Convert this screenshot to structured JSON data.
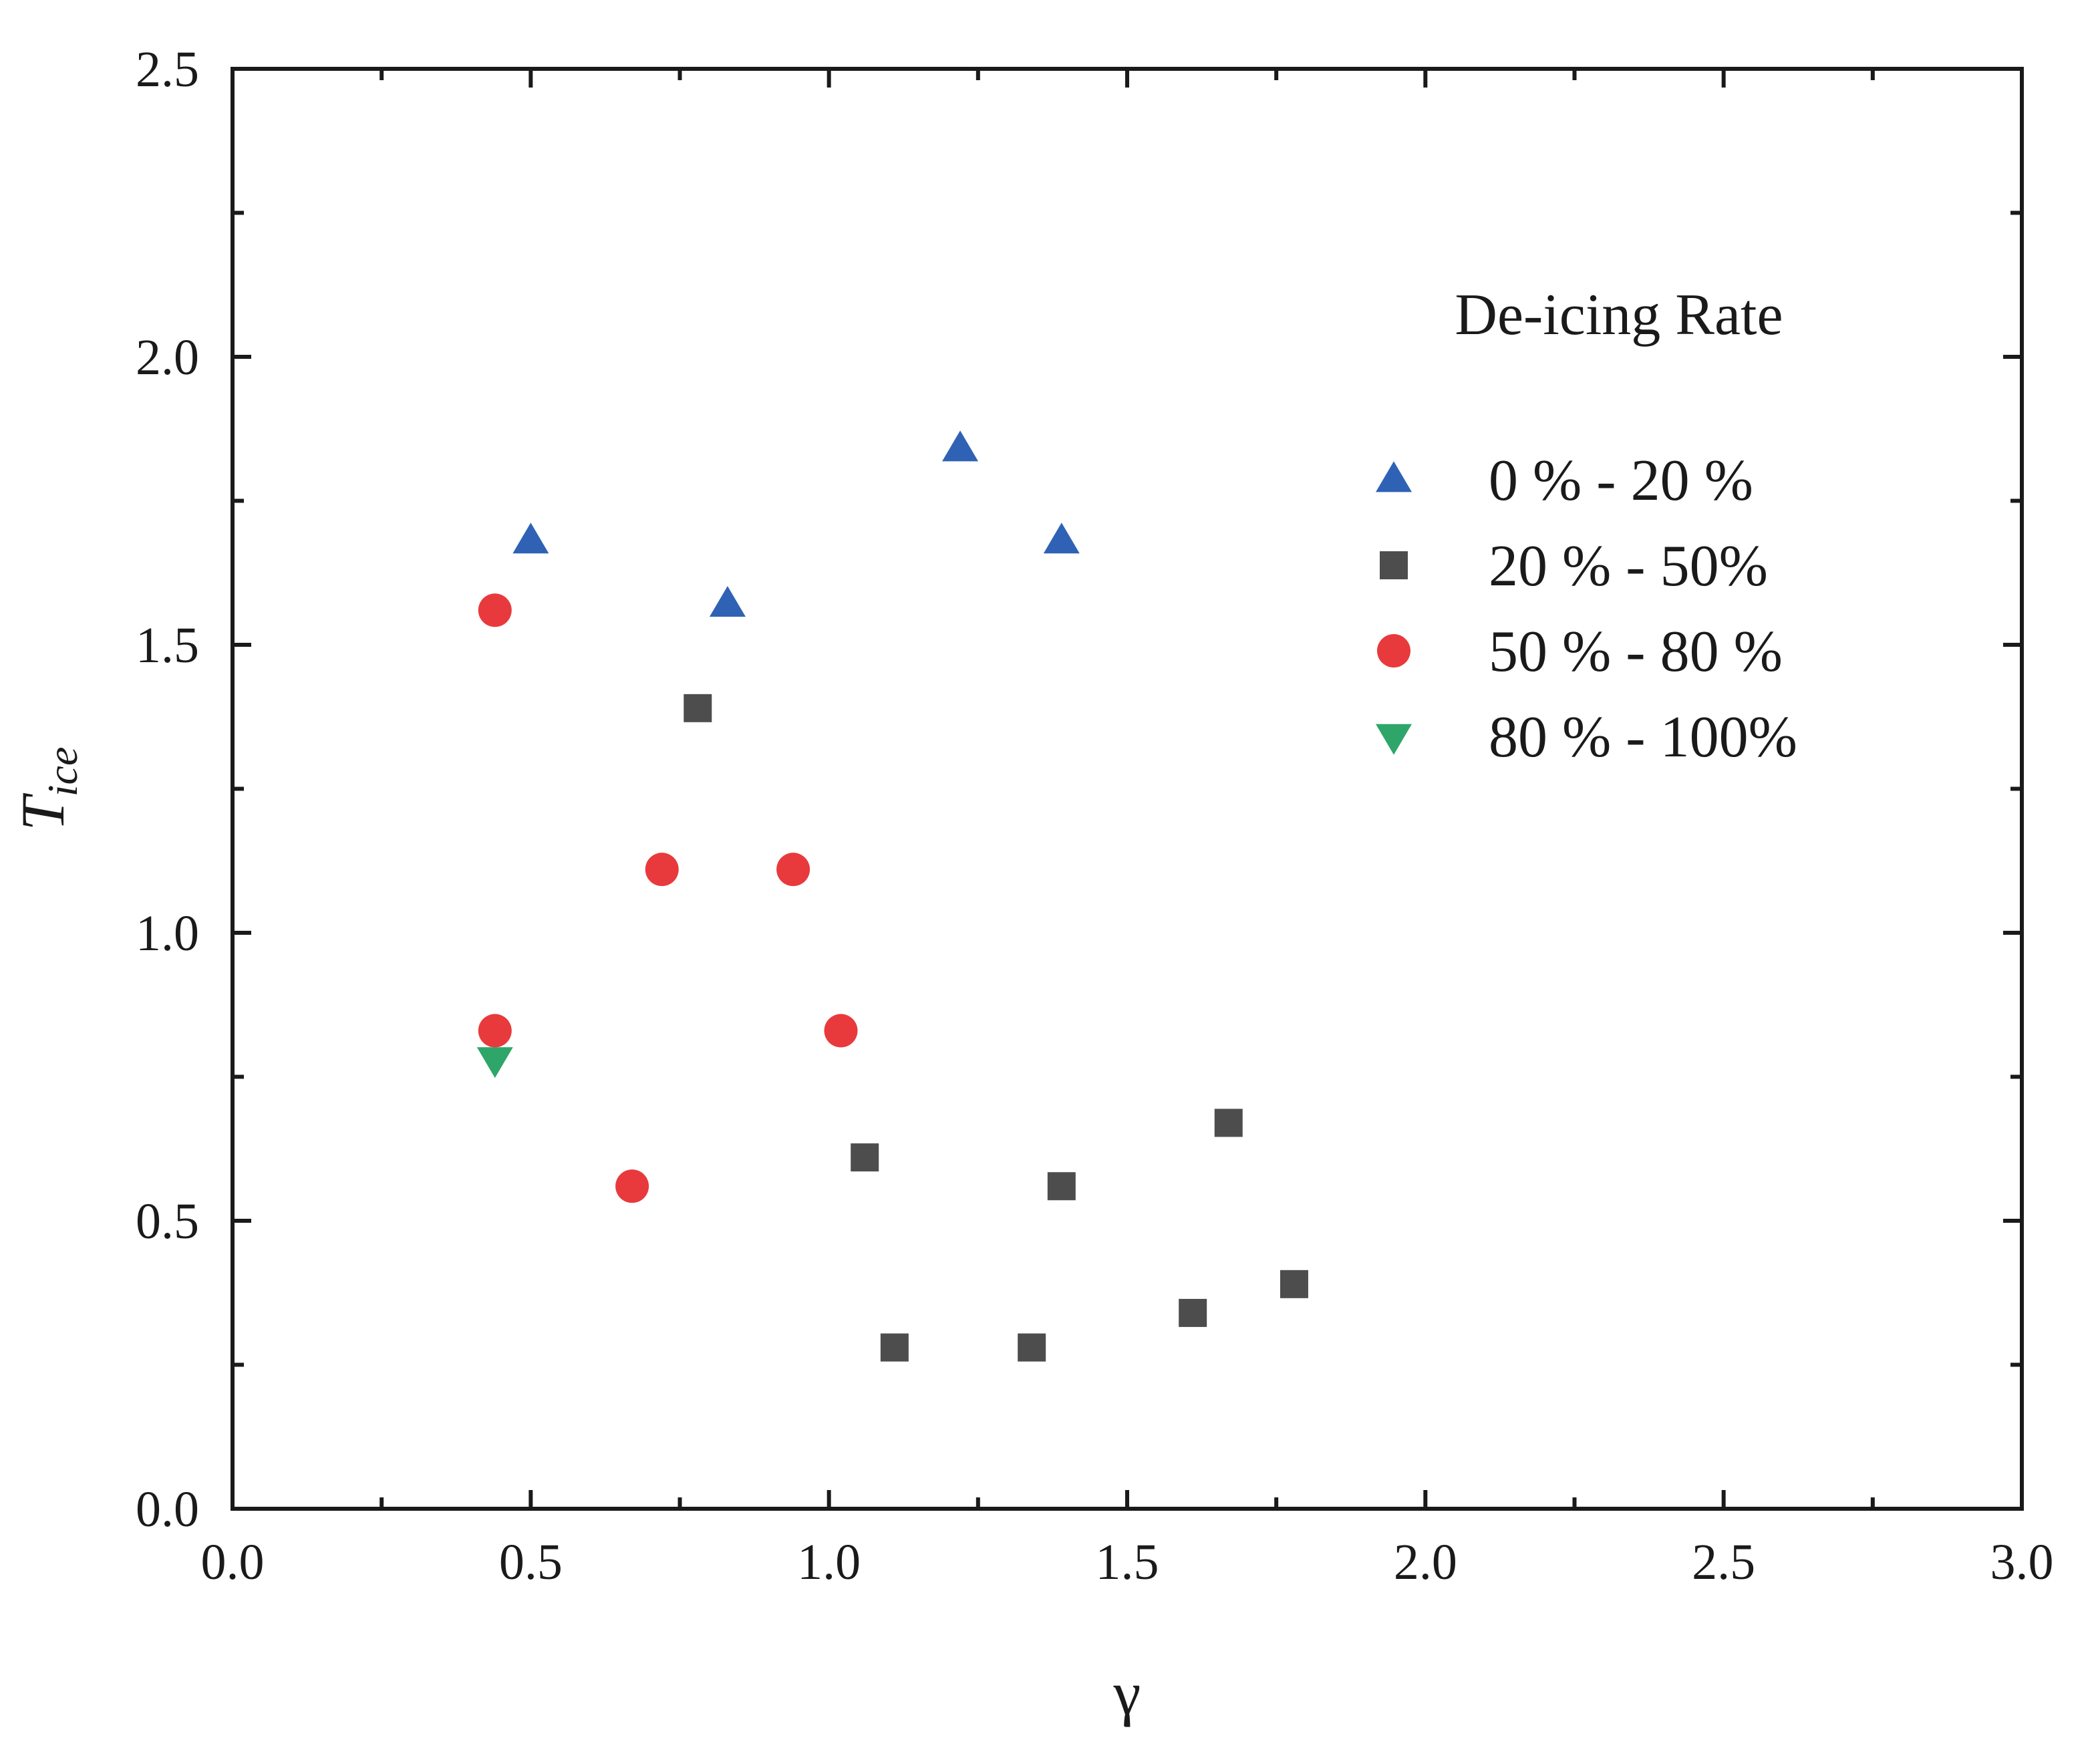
{
  "chart_data": {
    "type": "scatter",
    "title": "",
    "xlabel": "γ",
    "ylabel": {
      "main": "T",
      "subscript": "ice"
    },
    "xlim": [
      0,
      3
    ],
    "ylim": [
      0,
      2.5
    ],
    "x_ticks": [
      "0.0",
      "0.5",
      "1.0",
      "1.5",
      "2.0",
      "2.5",
      "3.0"
    ],
    "y_ticks": [
      "0.0",
      "0.5",
      "1.0",
      "1.5",
      "2.0",
      "2.5"
    ],
    "grid": false,
    "legend_title": "De-icing Rate",
    "legend_position": "top-right",
    "series": [
      {
        "name": "0 % - 20 %",
        "marker": "triangle-up",
        "color": "#2f62b5",
        "x": [
          0.5,
          0.83,
          1.22,
          1.39
        ],
        "y": [
          1.68,
          1.57,
          1.84,
          1.68
        ]
      },
      {
        "name": "20 % - 50%",
        "marker": "square",
        "color": "#4d4d4d",
        "x": [
          0.78,
          1.06,
          1.11,
          1.34,
          1.39,
          1.61,
          1.67,
          1.78
        ],
        "y": [
          1.39,
          0.61,
          0.28,
          0.28,
          0.56,
          0.34,
          0.67,
          0.39
        ]
      },
      {
        "name": "50 % - 80 %",
        "marker": "circle",
        "color": "#e83a3c",
        "x": [
          0.44,
          0.72,
          0.94,
          0.44,
          1.02,
          0.67
        ],
        "y": [
          1.56,
          1.11,
          1.11,
          0.83,
          0.83,
          0.56
        ]
      },
      {
        "name": "80 % - 100%",
        "marker": "triangle-down",
        "color": "#2ea66a",
        "x": [
          0.44
        ],
        "y": [
          0.78
        ]
      }
    ]
  }
}
